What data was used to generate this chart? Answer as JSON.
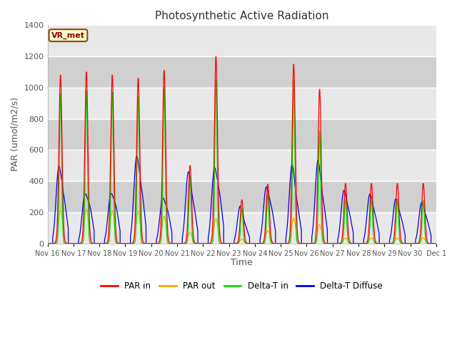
{
  "title": "Photosynthetic Active Radiation",
  "ylabel": "PAR (umol/m2/s)",
  "xlabel": "Time",
  "annotation": "VR_met",
  "ylim": [
    0,
    1400
  ],
  "plot_bg_color": "#dedede",
  "colors": {
    "PAR in": "#ff0000",
    "PAR out": "#ffa500",
    "Delta-T in": "#00dd00",
    "Delta-T Diffuse": "#0000ee"
  },
  "x_tick_labels": [
    "Nov 16",
    "Nov 17",
    "Nov 18",
    "Nov 19",
    "Nov 20",
    "Nov 21",
    "Nov 22",
    "Nov 23",
    "Nov 24",
    "Nov 25",
    "Nov 26",
    "Nov 27",
    "Nov 28",
    "Nov 29",
    "Nov 30",
    "Dec 1"
  ],
  "yticks": [
    0,
    200,
    400,
    600,
    800,
    1000,
    1200,
    1400
  ],
  "par_in_peaks": [
    1080,
    1100,
    1080,
    1060,
    1110,
    500,
    1200,
    280,
    380,
    1150,
    990,
    385,
    385,
    385,
    385
  ],
  "par_out_peaks": [
    210,
    220,
    210,
    205,
    175,
    70,
    160,
    28,
    82,
    162,
    120,
    35,
    35,
    35,
    35
  ],
  "dtin_peaks": [
    960,
    980,
    970,
    940,
    1000,
    420,
    1050,
    225,
    315,
    1050,
    720,
    285,
    285,
    285,
    275
  ],
  "dtdiff_peaks": [
    430,
    260,
    260,
    485,
    240,
    405,
    410,
    215,
    308,
    455,
    475,
    295,
    275,
    248,
    228
  ],
  "dtdiff_second": [
    260,
    215,
    220,
    300,
    190,
    220,
    290,
    100,
    210,
    220,
    240,
    180,
    165,
    150,
    140
  ]
}
